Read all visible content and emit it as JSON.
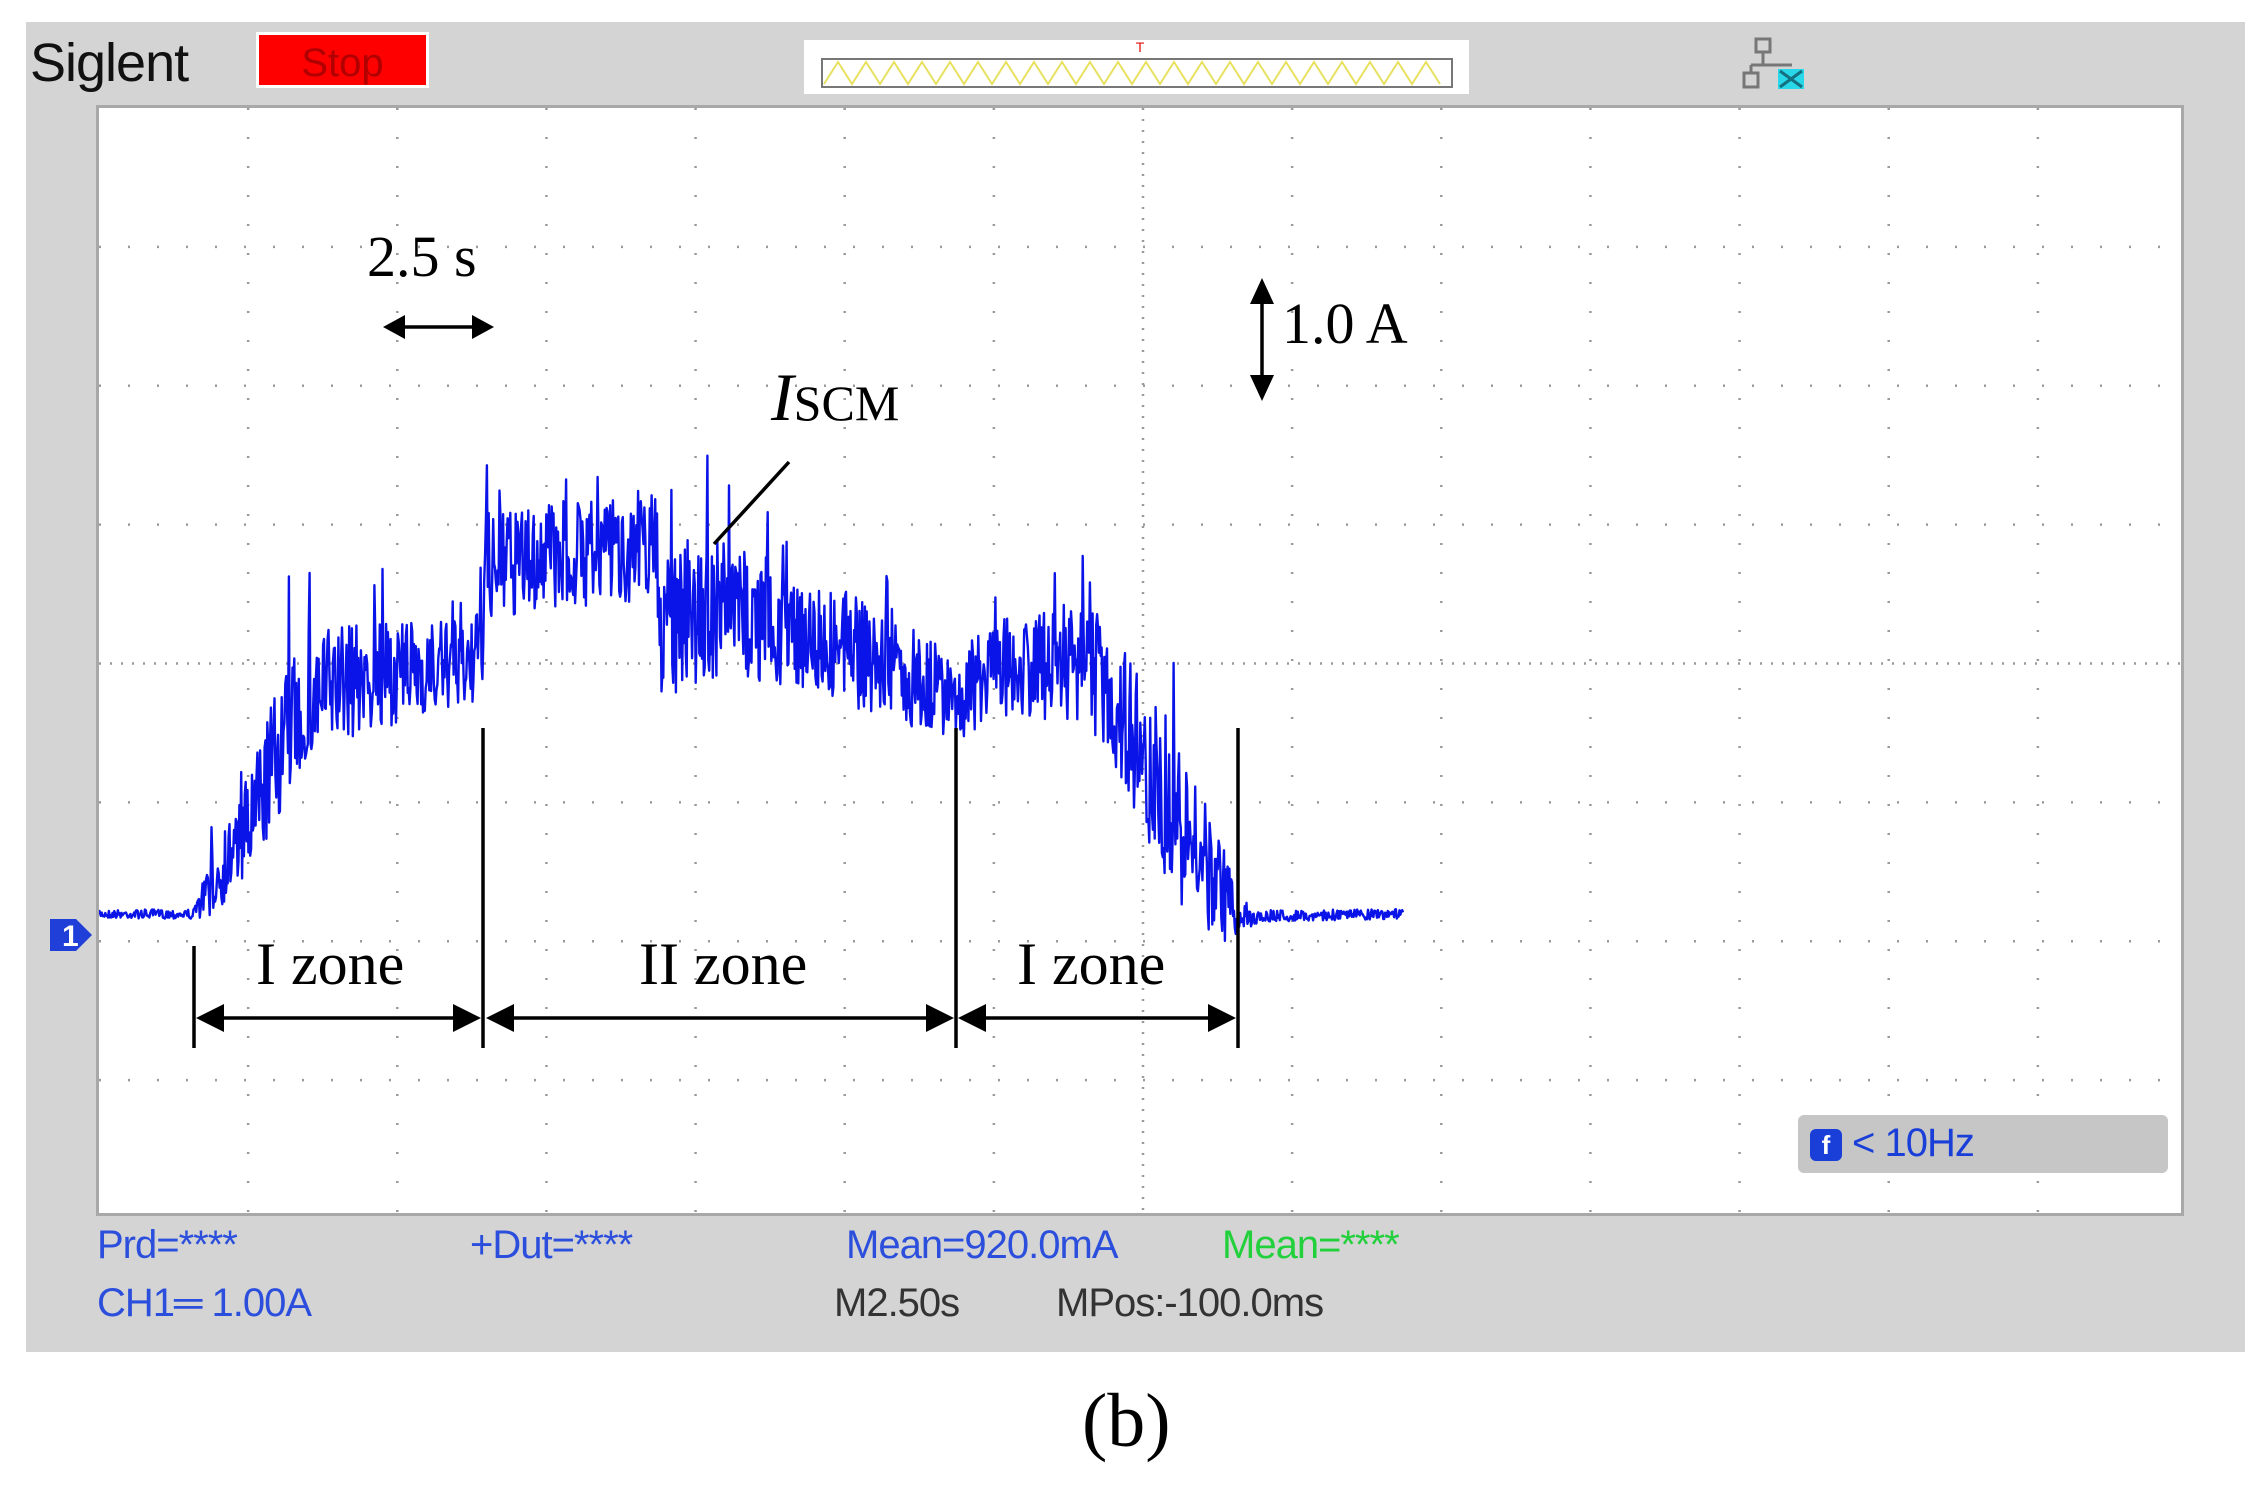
{
  "header": {
    "brand": "Siglent",
    "stop_label": "Stop"
  },
  "screen": {
    "annotations": {
      "time_scale": "2.5 s",
      "current_scale": "1.0 A",
      "signal_italic": "I",
      "signal_sub": "SCM",
      "zone1": "I zone",
      "zone2": "II zone",
      "zone3": "I zone"
    },
    "channel_marker": "1",
    "trigger_marker": "T"
  },
  "freq": {
    "icon": "f",
    "label": "< 10Hz"
  },
  "measurements": {
    "prd": "Prd=****",
    "dut": "+Dut=****",
    "mean1": "Mean=920.0mA",
    "mean2": "Mean=****",
    "ch1": "CH1═ 1.00A",
    "mtime": "M2.50s",
    "mpos": "MPos:-100.0ms"
  },
  "caption": "(b)",
  "colors": {
    "trace": "#0b14e8",
    "stop": "#ff0000",
    "measure_blue": "#2b4fdc",
    "measure_green": "#22d03c"
  }
}
